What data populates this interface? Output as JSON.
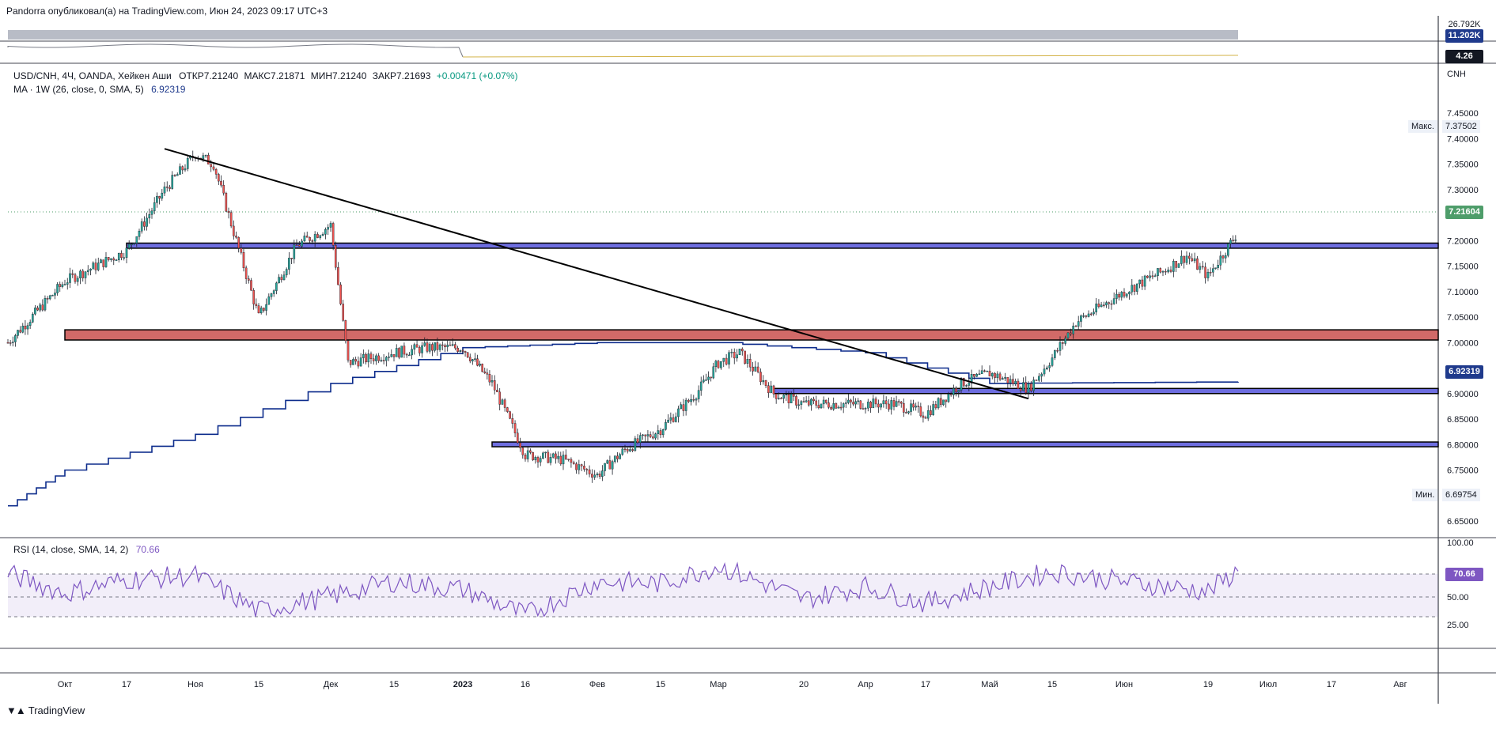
{
  "header": {
    "attribution": "Pandorra опубликовал(а) на TradingView.com, Июн 24, 2023 09:17 UTC+3"
  },
  "legend": {
    "symbol": "USD/CNH, 4Ч, OANDA, Хейкен Аши",
    "open": "ОТКР7.21240",
    "high": "МАКС7.21871",
    "low": "МИН7.21240",
    "close": "ЗАКР7.21693",
    "change": "+0.00471 (+0.07%)",
    "ma_label": "MA · 1W (26, close, 0, SMA, 5)",
    "ma_value": "6.92319",
    "rsi_label": "RSI (14, close, SMA, 14, 2)",
    "rsi_value": "70.66"
  },
  "top_panel": {
    "volume_top": "26.792K",
    "volume_badge": "11.202K",
    "indicator_badge": "4.26"
  },
  "price_axis": {
    "currency": "CNH",
    "max_label": "Макс.",
    "max_value": "7.37502",
    "min_label": "Мин.",
    "min_value": "6.69754",
    "last_price": "7.21604",
    "ma_price": "6.92319",
    "ticks": [
      "7.45000",
      "7.40000",
      "7.35000",
      "7.30000",
      "7.25000",
      "7.20000",
      "7.15000",
      "7.10000",
      "7.05000",
      "7.00000",
      "6.95000",
      "6.90000",
      "6.85000",
      "6.80000",
      "6.75000",
      "6.70000",
      "6.65000"
    ]
  },
  "rsi_axis": {
    "ticks": [
      "100.00",
      "75.00",
      "50.00",
      "25.00"
    ],
    "badge": "70.66"
  },
  "time_axis": {
    "labels": [
      "Окт",
      "17",
      "Ноя",
      "15",
      "Дек",
      "15",
      "2023",
      "16",
      "Фев",
      "15",
      "Мар",
      "20",
      "Апр",
      "17",
      "Май",
      "15",
      "Июн",
      "19",
      "Июл",
      "17",
      "Авг"
    ]
  },
  "colors": {
    "candle_up": "#26a69a",
    "candle_down": "#ef5350",
    "ma_line": "#0d2c8c",
    "blue_zone": "#3d3dd6",
    "red_zone": "#c9504e",
    "trendline": "#000000",
    "rsi_line": "#7e57c2",
    "last_price_badge": "#4e9d6a",
    "ma_badge": "#1f3a8c",
    "rsi_badge": "#7e57c2",
    "volume_badge": "#1f3a8c"
  },
  "chart_data": [
    {
      "type": "candlestick",
      "title": "USD/CNH, 4Ч, OANDA, Хейкен Аши",
      "ylabel": "CNH",
      "ylim": [
        6.62,
        7.47
      ],
      "x": [
        "Сен 22",
        "Окт",
        "Окт 17",
        "Окт 24",
        "Ноя",
        "Ноя 8",
        "Ноя 15",
        "Ноя 24",
        "Дек",
        "Дек 6",
        "Дек 15",
        "Дек 22",
        "2023",
        "Янв 9",
        "Янв 16",
        "Янв 24",
        "Фев",
        "Фев 8",
        "Фев 15",
        "Фев 24",
        "Мар",
        "Мар 8",
        "Мар 15",
        "Мар 20",
        "Мар 28",
        "Апр",
        "Апр 10",
        "Апр 17",
        "Апр 25",
        "Май",
        "Май 8",
        "Май 15",
        "Май 22",
        "Июн",
        "Июн 9",
        "Июн 15",
        "Июн 19",
        "Июн 23"
      ],
      "close": [
        7.0,
        7.12,
        7.18,
        7.3,
        7.37,
        7.35,
        7.05,
        7.19,
        7.23,
        6.96,
        6.98,
        6.99,
        6.99,
        6.92,
        6.78,
        6.77,
        6.74,
        6.79,
        6.83,
        6.9,
        6.96,
        6.98,
        6.9,
        6.88,
        6.88,
        6.88,
        6.88,
        6.86,
        6.92,
        6.94,
        6.91,
        6.97,
        7.04,
        7.1,
        7.14,
        7.17,
        7.13,
        7.217
      ],
      "line_series": {
        "name": "MA 1W (26, close, 0, SMA, 5)",
        "values_at": [
          "Сен 22",
          "Окт",
          "Ноя",
          "Дек",
          "2023",
          "Фев",
          "Мар",
          "Апр",
          "Май",
          "Июн 23"
        ],
        "values": [
          6.68,
          6.75,
          6.82,
          6.92,
          6.99,
          7.0,
          7.0,
          6.98,
          6.92,
          6.923
        ]
      },
      "zones": [
        {
          "kind": "support",
          "price": [
            7.185,
            7.195
          ],
          "from": "Окт 17"
        },
        {
          "kind": "resistance",
          "price": [
            7.005,
            7.025
          ],
          "from": "Окт"
        },
        {
          "kind": "support",
          "price": [
            6.9,
            6.91
          ],
          "from": "Мар 15"
        },
        {
          "kind": "support",
          "price": [
            6.796,
            6.805
          ],
          "from": "Янв 9"
        }
      ],
      "trendline": {
        "from": [
          "Окт 24",
          7.38
        ],
        "to": [
          "Май 8",
          6.89
        ]
      },
      "max": 7.37502,
      "min": 6.69754,
      "last": 7.21604
    },
    {
      "type": "line",
      "title": "RSI (14, close, SMA, 14, 2)",
      "ylim": [
        0,
        100
      ],
      "bands": [
        30,
        70
      ],
      "x": [
        "Сен 22",
        "Окт",
        "Окт 17",
        "Ноя",
        "Ноя 15",
        "Дек",
        "Дек 15",
        "2023",
        "Янв 16",
        "Фев",
        "Фев 15",
        "Мар",
        "Мар 20",
        "Апр",
        "Апр 17",
        "Май",
        "Май 15",
        "Июн",
        "Июн 19",
        "Июн 23"
      ],
      "values": [
        68,
        48,
        62,
        66,
        30,
        45,
        60,
        52,
        26,
        60,
        58,
        76,
        42,
        55,
        38,
        55,
        70,
        60,
        50,
        70.66
      ]
    }
  ]
}
